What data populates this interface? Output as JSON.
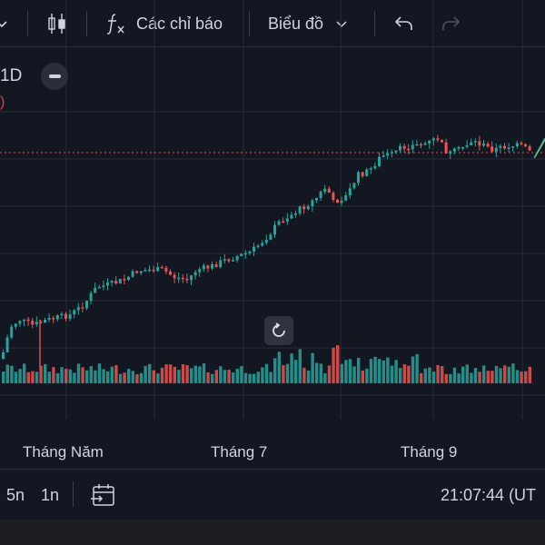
{
  "toolbar": {
    "indicators_label": "Các chỉ báo",
    "chart_type_label": "Biểu đồ",
    "undo_icon": "undo-icon",
    "redo_icon": "redo-icon"
  },
  "legend": {
    "interval": "1D",
    "paren": ")"
  },
  "chart_data": {
    "type": "candlestick",
    "xlabels": [
      "Tháng Năm",
      "Tháng 7",
      "Tháng 9"
    ],
    "colors": {
      "up": "#26a69a",
      "down": "#ef5350",
      "background": "#131722",
      "grid": "#2a2e39",
      "last_price_line": "#ef5350"
    },
    "grid": true,
    "last_price_line": "dotted"
  },
  "bottombar": {
    "range_5y": "5n",
    "range_1y": "1n",
    "time": "21:07:44 (UT"
  }
}
